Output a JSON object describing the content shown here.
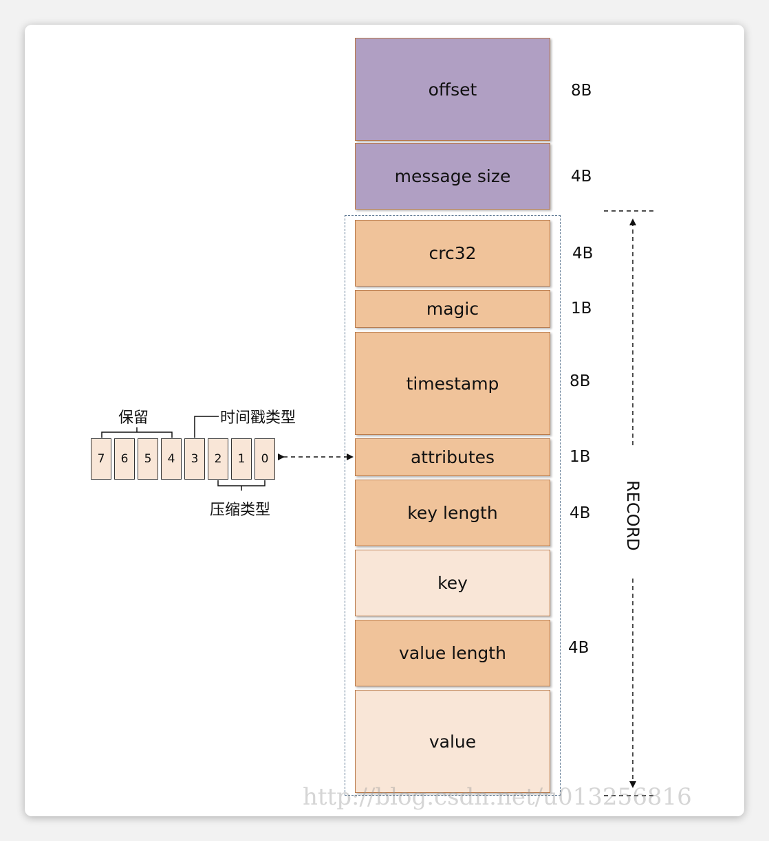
{
  "fields": [
    {
      "label": "offset",
      "size": "8B",
      "color": "purple"
    },
    {
      "label": "message size",
      "size": "4B",
      "color": "purple"
    },
    {
      "label": "crc32",
      "size": "4B",
      "color": "orange"
    },
    {
      "label": "magic",
      "size": "1B",
      "color": "orange"
    },
    {
      "label": "timestamp",
      "size": "8B",
      "color": "orange"
    },
    {
      "label": "attributes",
      "size": "1B",
      "color": "orange"
    },
    {
      "label": "key length",
      "size": "4B",
      "color": "orange"
    },
    {
      "label": "key",
      "size": "",
      "color": "light"
    },
    {
      "label": "value length",
      "size": "4B",
      "color": "orange"
    },
    {
      "label": "value",
      "size": "",
      "color": "light"
    }
  ],
  "record_label": "RECORD",
  "bits": [
    "7",
    "6",
    "5",
    "4",
    "3",
    "2",
    "1",
    "0"
  ],
  "bit_groups": {
    "reserved": "保留",
    "timestamp_type": "时间戳类型",
    "compression_type": "压缩类型"
  },
  "watermark": "http://blog.csdn.net/u013256816",
  "colors": {
    "purple": "#b09fc3",
    "orange": "#f0c39a",
    "light": "#f9e6d7",
    "border": "#b8794a",
    "dash": "#5a7590"
  }
}
